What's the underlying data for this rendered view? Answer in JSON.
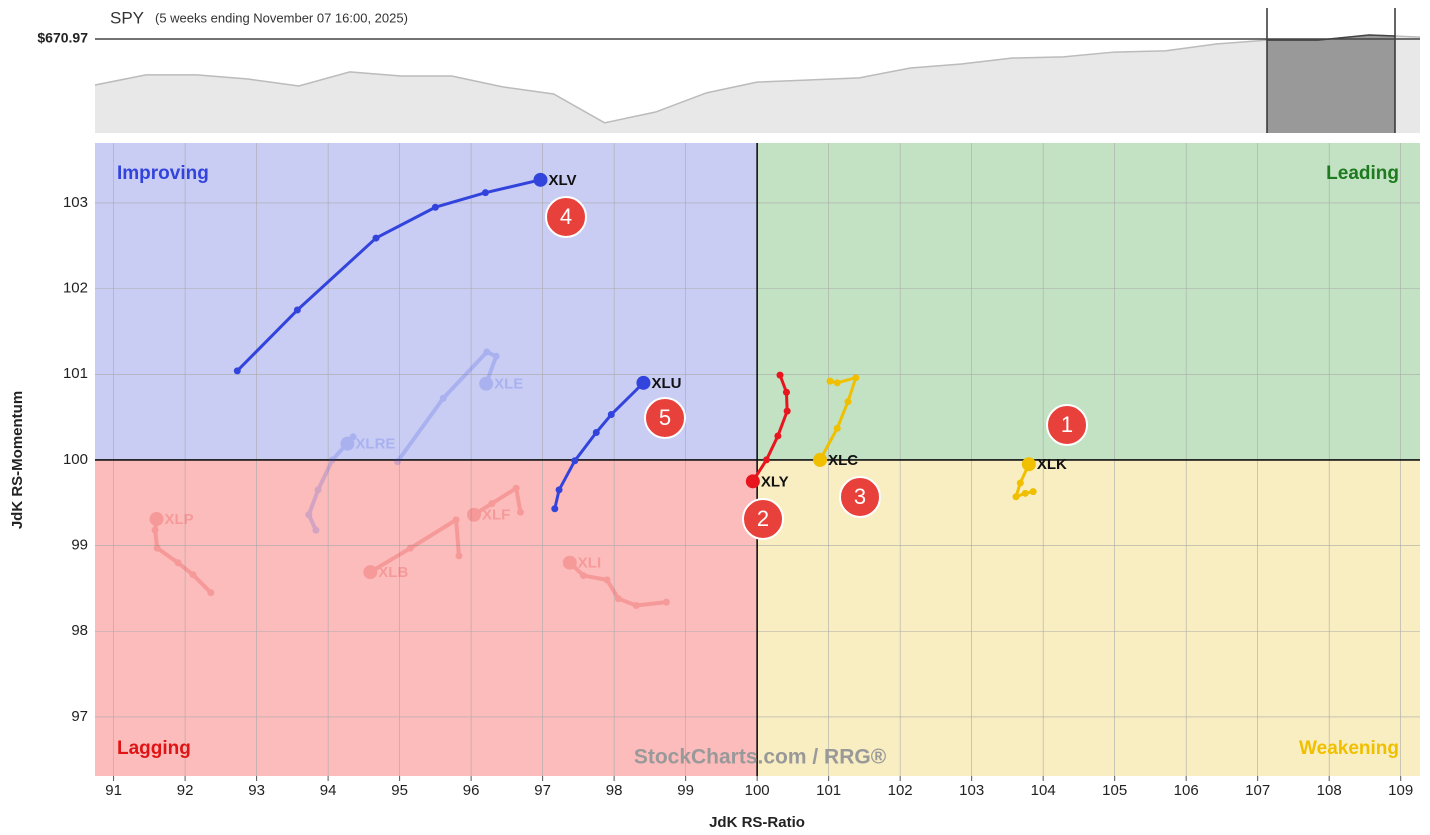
{
  "chart_data": [
    {
      "type": "area",
      "title": "SPY",
      "subtitle": "(5 weeks ending November 07 16:00, 2025)",
      "values": [
        655.6,
        659.0,
        659.0,
        657.6,
        655.3,
        660.0,
        658.6,
        658.6,
        655.0,
        652.6,
        643.0,
        646.6,
        653.0,
        656.6,
        657.3,
        658.0,
        661.3,
        662.6,
        664.6,
        665.0,
        666.6,
        667.0,
        669.3,
        670.6,
        670.6,
        672.3,
        671.6
      ],
      "ylim": [
        639.6,
        681.3
      ],
      "color": "#e8e8e8",
      "reference": {
        "value": 670.97,
        "label": "$670.97"
      }
    },
    {
      "type": "rrg",
      "xlabel": "JdK RS-Ratio",
      "ylabel": "JdK RS-Momentum",
      "xlim": [
        90.74,
        109.27
      ],
      "ylim": [
        96.31,
        103.7
      ],
      "xticks": [
        91,
        92,
        93,
        94,
        95,
        96,
        97,
        98,
        99,
        100,
        101,
        102,
        103,
        104,
        105,
        106,
        107,
        108,
        109
      ],
      "yticks": [
        97,
        98,
        99,
        100,
        101,
        102,
        103
      ],
      "grid": true,
      "center": {
        "x": 100,
        "y": 100
      },
      "quadrants": [
        {
          "name": "Improving",
          "color": "#3344dd",
          "fill": "#c9cdf4"
        },
        {
          "name": "Leading",
          "color": "#1e7a1e",
          "fill": "#c3e2c3"
        },
        {
          "name": "Lagging",
          "color": "#e01414",
          "fill": "#fcbcbc"
        },
        {
          "name": "Weakening",
          "color": "#f0c000",
          "fill": "#f9eec1"
        }
      ],
      "series": [
        {
          "name": "XLE",
          "color": "#3344dd",
          "opacity": 0.2,
          "x": [
            94.97,
            95.61,
            96.22,
            96.35,
            96.21
          ],
          "y": [
            99.98,
            100.72,
            101.26,
            101.21,
            100.89
          ]
        },
        {
          "name": "XLRE",
          "color": "#3344dd",
          "opacity": 0.2,
          "x": [
            93.83,
            93.73,
            93.86,
            94.06,
            94.35,
            94.27
          ],
          "y": [
            99.18,
            99.36,
            99.65,
            100.0,
            100.27,
            100.19
          ]
        },
        {
          "name": "XLP",
          "color": "#e01414",
          "opacity": 0.2,
          "x": [
            92.36,
            92.11,
            91.9,
            91.61,
            91.58,
            91.6
          ],
          "y": [
            98.45,
            98.66,
            98.8,
            98.97,
            99.18,
            99.31
          ]
        },
        {
          "name": "XLB",
          "color": "#e01414",
          "opacity": 0.2,
          "x": [
            95.83,
            95.79,
            95.15,
            94.59
          ],
          "y": [
            98.88,
            99.3,
            98.97,
            98.69
          ]
        },
        {
          "name": "XLF",
          "color": "#e01414",
          "opacity": 0.2,
          "x": [
            96.69,
            96.63,
            96.29,
            96.04
          ],
          "y": [
            99.39,
            99.67,
            99.49,
            99.36
          ]
        },
        {
          "name": "XLI",
          "color": "#e01414",
          "opacity": 0.2,
          "x": [
            98.73,
            98.31,
            98.06,
            97.9,
            97.57,
            97.38
          ],
          "y": [
            98.34,
            98.3,
            98.38,
            98.6,
            98.65,
            98.8
          ]
        },
        {
          "name": "XLV",
          "color": "#3344dd",
          "opacity": 1,
          "x": [
            92.73,
            93.57,
            94.67,
            95.5,
            96.2,
            96.97
          ],
          "y": [
            101.04,
            101.75,
            102.59,
            102.95,
            103.12,
            103.27
          ]
        },
        {
          "name": "XLU",
          "color": "#3344dd",
          "opacity": 1,
          "x": [
            97.17,
            97.23,
            97.45,
            97.75,
            97.96,
            98.41
          ],
          "y": [
            99.43,
            99.65,
            99.99,
            100.32,
            100.53,
            100.9
          ]
        },
        {
          "name": "XLY",
          "color": "#e8141e",
          "opacity": 1,
          "x": [
            100.32,
            100.41,
            100.42,
            100.29,
            100.13,
            99.94
          ],
          "y": [
            100.99,
            100.79,
            100.57,
            100.28,
            100.0,
            99.75
          ]
        },
        {
          "name": "XLC",
          "color": "#f0c000",
          "opacity": 1,
          "x": [
            101.02,
            101.12,
            101.38,
            101.27,
            101.12,
            100.88
          ],
          "y": [
            100.92,
            100.9,
            100.96,
            100.68,
            100.37,
            100.0
          ]
        },
        {
          "name": "XLK",
          "color": "#f0c000",
          "opacity": 1,
          "x": [
            103.86,
            103.75,
            103.62,
            103.68,
            103.8
          ],
          "y": [
            99.63,
            99.61,
            99.57,
            99.73,
            99.95
          ]
        }
      ],
      "annotations": [
        "1",
        "2",
        "3",
        "4",
        "5"
      ],
      "watermark": "StockCharts.com / RRG®"
    }
  ]
}
